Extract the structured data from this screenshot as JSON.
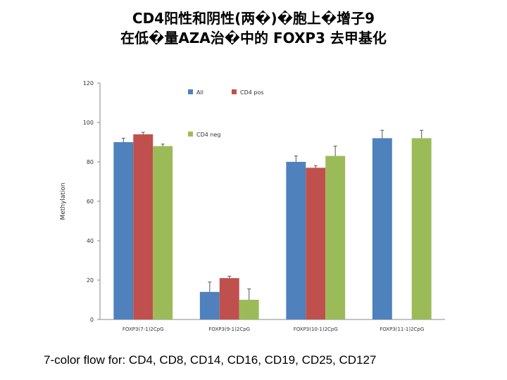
{
  "slide": {
    "title_line1": "CD4阳性和阴性(两�)�胞上�增子9",
    "title_line2": "在低�量AZA治�中的 FOXP3 去甲基化",
    "footer": "7-color flow for: CD4, CD8, CD14, CD16, CD19, CD25, CD127"
  },
  "chart_data": {
    "type": "bar",
    "title": "",
    "xlabel": "",
    "ylabel": "Methylation",
    "ylim": [
      0,
      120
    ],
    "yticks": [
      0,
      20,
      40,
      60,
      80,
      100,
      120
    ],
    "categories": [
      "FOXP3(7-1)2CpG",
      "FOXP3(9-1)2CpG",
      "FOXP3(10-1)2CpG",
      "FOXP3(11-1)2CpG"
    ],
    "series": [
      {
        "name": "All",
        "color": "#4F81BD",
        "values": [
          90,
          14,
          80,
          92
        ],
        "errors": [
          2,
          5,
          3,
          4
        ]
      },
      {
        "name": "CD4 pos",
        "color": "#C0504D",
        "values": [
          94,
          21,
          77,
          null
        ],
        "errors": [
          1,
          1,
          1,
          null
        ]
      },
      {
        "name": "CD4 neg",
        "color": "#9BBB59",
        "values": [
          88,
          10,
          83,
          92
        ],
        "errors": [
          1,
          5.5,
          5,
          4
        ]
      }
    ],
    "legend": "top, inside plot"
  }
}
